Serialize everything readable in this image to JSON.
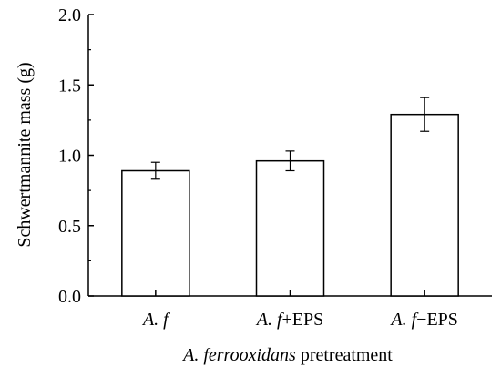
{
  "chart_data": {
    "type": "bar",
    "categories": [
      {
        "italic": "A. f",
        "plain": ""
      },
      {
        "italic": "A. f",
        "plain": "+EPS"
      },
      {
        "italic": "A. f",
        "plain": "−EPS"
      }
    ],
    "values": [
      0.89,
      0.96,
      1.29
    ],
    "errors": [
      0.06,
      0.07,
      0.12
    ],
    "ylim": [
      0.0,
      2.0
    ],
    "yticks": [
      "0.0",
      "0.5",
      "1.0",
      "1.5",
      "2.0"
    ],
    "ylabel": "Schwertmannite mass (g)",
    "xlabel": {
      "italic": "A. ferrooxidans",
      "plain": " pretreatment"
    },
    "bar_fill": "#ffffff",
    "bar_stroke": "#000000",
    "legend": "none",
    "grid": false
  }
}
